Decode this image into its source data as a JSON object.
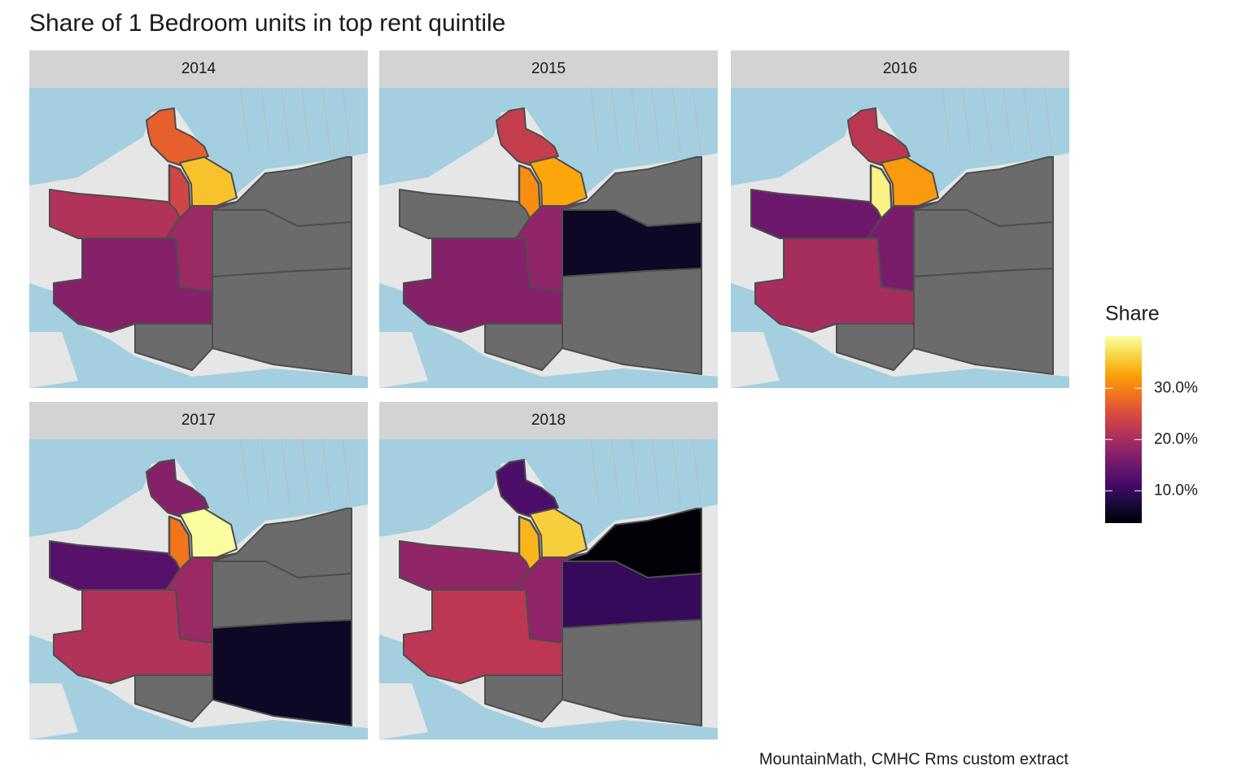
{
  "chart_data": {
    "type": "choropleth",
    "title": "Share of 1 Bedroom units in top rent quintile",
    "caption": "MountainMath, CMHC Rms custom extract",
    "legend_title": "Share",
    "palette": "inferno",
    "na_color": "#6b6b6b",
    "colorlim": [
      3.7,
      40.2
    ],
    "colorticks": [
      {
        "value": 10,
        "label": "10.0%"
      },
      {
        "value": 20,
        "label": "20.0%"
      },
      {
        "value": 30,
        "label": "30.0%"
      }
    ],
    "facets": [
      {
        "label": "2014",
        "values": [
          27,
          24,
          35,
          21,
          19,
          17,
          null,
          null,
          null,
          null
        ]
      },
      {
        "label": "2015",
        "values": [
          23,
          31,
          33,
          null,
          18,
          17,
          null,
          6,
          null,
          null
        ]
      },
      {
        "label": "2016",
        "values": [
          22,
          39,
          32,
          15,
          16,
          20,
          null,
          null,
          null,
          null
        ]
      },
      {
        "label": "2017",
        "values": [
          17,
          29,
          40,
          13,
          19,
          21,
          null,
          null,
          6,
          null
        ]
      },
      {
        "label": "2018",
        "values": [
          12,
          34,
          36,
          18,
          18,
          22,
          4,
          10,
          null,
          null
        ]
      }
    ]
  }
}
